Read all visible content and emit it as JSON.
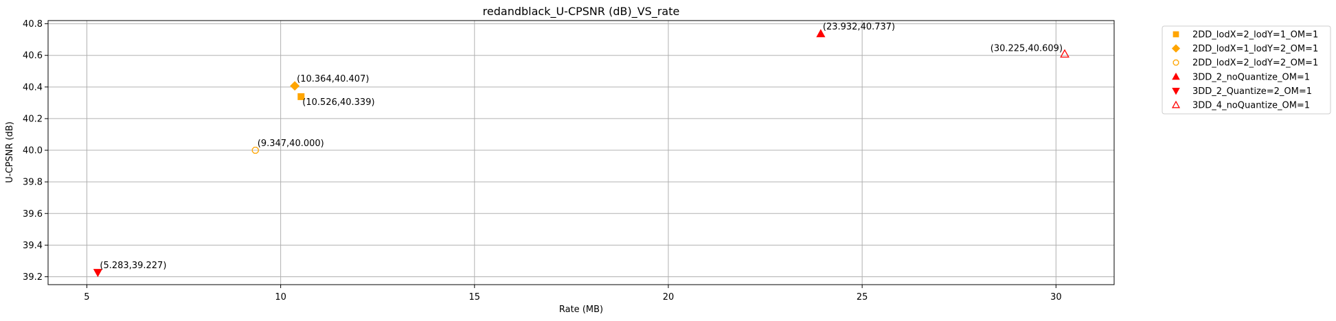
{
  "chart_data": {
    "type": "scatter",
    "title": "redandblack_U-CPSNR (dB)_VS_rate",
    "xlabel": "Rate (MB)",
    "ylabel": "U-CPSNR (dB)",
    "xlim": [
      4.0,
      31.5
    ],
    "ylim": [
      39.15,
      40.82
    ],
    "xticks": [
      5,
      10,
      15,
      20,
      25,
      30
    ],
    "yticks": [
      39.2,
      39.4,
      39.6,
      39.8,
      40.0,
      40.2,
      40.4,
      40.6,
      40.8
    ],
    "xtick_labels": [
      "5",
      "10",
      "15",
      "20",
      "25",
      "30"
    ],
    "ytick_labels": [
      "39.2",
      "39.4",
      "39.6",
      "39.8",
      "40.0",
      "40.2",
      "40.4",
      "40.6",
      "40.8"
    ],
    "grid": true,
    "legend_position": "outside-top-right",
    "series": [
      {
        "name": "2DD_lodX=2_lodY=1_OM=1",
        "marker": "square",
        "color": "#ffa500",
        "filled": true,
        "points": [
          {
            "x": 10.526,
            "y": 40.339,
            "label": "(10.526,40.339)",
            "label_pos": "below-right"
          }
        ]
      },
      {
        "name": "2DD_lodX=1_lodY=2_OM=1",
        "marker": "diamond",
        "color": "#ffa500",
        "filled": true,
        "points": [
          {
            "x": 10.364,
            "y": 40.407,
            "label": "(10.364,40.407)",
            "label_pos": "above-right"
          }
        ]
      },
      {
        "name": "2DD_lodX=2_lodY=2_OM=1",
        "marker": "octagon",
        "color": "#ffa500",
        "filled": false,
        "points": [
          {
            "x": 9.347,
            "y": 40.0,
            "label": "(9.347,40.000)",
            "label_pos": "above-right"
          }
        ]
      },
      {
        "name": "3DD_2_noQuantize_OM=1",
        "marker": "triangle-up",
        "color": "#ff0000",
        "filled": true,
        "points": [
          {
            "x": 23.932,
            "y": 40.737,
            "label": "(23.932,40.737)",
            "label_pos": "above-right"
          }
        ]
      },
      {
        "name": "3DD_2_Quantize=2_OM=1",
        "marker": "triangle-down",
        "color": "#ff0000",
        "filled": true,
        "points": [
          {
            "x": 5.283,
            "y": 39.227,
            "label": "(5.283,39.227)",
            "label_pos": "above-right"
          }
        ]
      },
      {
        "name": "3DD_4_noQuantize_OM=1",
        "marker": "triangle-up",
        "color": "#ff0000",
        "filled": false,
        "points": [
          {
            "x": 30.225,
            "y": 40.609,
            "label": "(30.225,40.609)",
            "label_pos": "above-left"
          }
        ]
      }
    ]
  }
}
